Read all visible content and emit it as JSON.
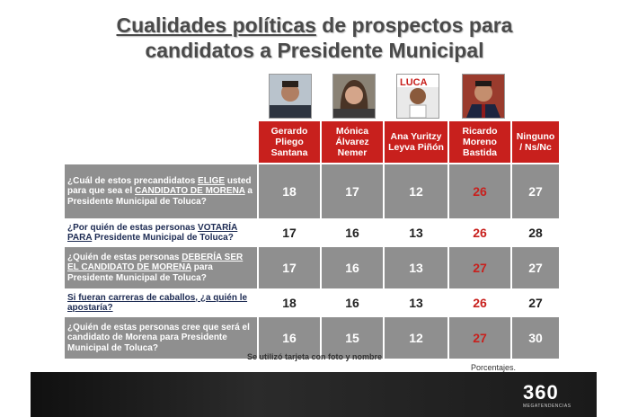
{
  "title": {
    "line1_underlined": "Cualidades políticas",
    "line1_rest": " de prospectos para",
    "line2": "candidatos a Presidente Municipal"
  },
  "candidates": [
    {
      "name": "Gerardo Pliego Santana",
      "photo": "photo-gerardo"
    },
    {
      "name": "Mónica Álvarez Nemer",
      "photo": "photo-monica"
    },
    {
      "name": "Ana Yuritzy Leyva Piñón",
      "photo": "photo-ana"
    },
    {
      "name": "Ricardo Moreno Bastida",
      "photo": "photo-ricardo"
    },
    {
      "name": "Ninguno / Ns/Nc",
      "photo": null
    }
  ],
  "questions": [
    {
      "parts": [
        {
          "t": "¿Cuál de estos precandidatos "
        },
        {
          "t": "ELIGE",
          "u": true
        },
        {
          "t": " usted para que sea el "
        },
        {
          "t": "CANDIDATO DE MORENA",
          "u": true
        },
        {
          "t": "  a Presidente Municipal de Toluca?"
        }
      ],
      "values": [
        18,
        17,
        12,
        26,
        27
      ]
    },
    {
      "parts": [
        {
          "t": "¿Por quién de estas personas "
        },
        {
          "t": "VOTARÍA PARA",
          "u": true
        },
        {
          "t": " Presidente Municipal de Toluca?"
        }
      ],
      "values": [
        17,
        16,
        13,
        26,
        28
      ]
    },
    {
      "parts": [
        {
          "t": "¿Quién de estas personas "
        },
        {
          "t": "DEBERÍA SER EL CANDIDATO DE MORENA",
          "u": true
        },
        {
          "t": " para Presidente Municipal de Toluca?"
        }
      ],
      "values": [
        17,
        16,
        13,
        27,
        27
      ]
    },
    {
      "parts": [
        {
          "t": "Si fueran carreras de caballos, ¿a quién le apostaría?",
          "u": true
        }
      ],
      "values": [
        18,
        16,
        13,
        26,
        27
      ]
    },
    {
      "parts": [
        {
          "t": "¿Quién de estas personas cree que será el candidato de Morena para Presidente Municipal de Toluca?"
        }
      ],
      "values": [
        16,
        15,
        12,
        27,
        30
      ]
    }
  ],
  "highlight_column": 3,
  "note": "Se utilizó tarjeta con foto y nombre",
  "footer_label": "Porcentajes.",
  "logo": "360",
  "logo_sub": "MEGATENDENCIAS",
  "colors": {
    "header": "#c8201d",
    "dark_row": "#8f8f8f",
    "highlight": "#c8201d"
  }
}
